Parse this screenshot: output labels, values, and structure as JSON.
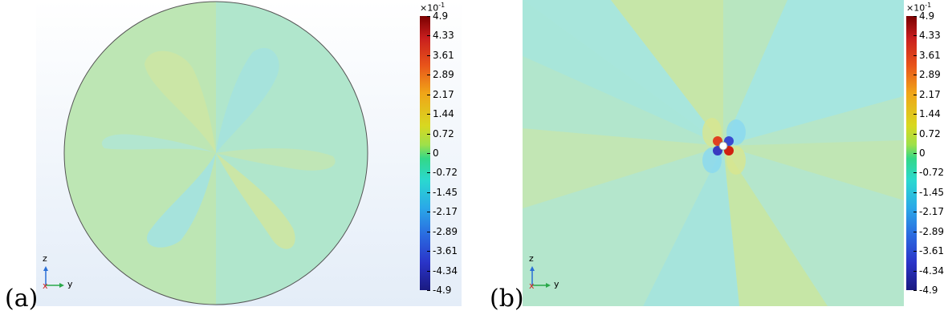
{
  "panels": [
    {
      "label": "(a)",
      "colorbar": {
        "exponent_base": "×10",
        "exponent_power": "-1",
        "ticks": [
          "4.9",
          "4.33",
          "3.61",
          "2.89",
          "2.17",
          "1.44",
          "0.72",
          "0",
          "-0.72",
          "-1.45",
          "-2.17",
          "-2.89",
          "-3.61",
          "-4.34",
          "-4.9"
        ],
        "range": [
          -4.9,
          4.9
        ]
      },
      "axes": {
        "z": "z",
        "y": "y",
        "x": "x"
      }
    },
    {
      "label": "(b)",
      "colorbar": {
        "exponent_base": "×10",
        "exponent_power": "-1",
        "ticks": [
          "4.9",
          "4.33",
          "3.61",
          "2.89",
          "2.17",
          "1.44",
          "0.72",
          "0",
          "-0.72",
          "-1.45",
          "-2.17",
          "-2.89",
          "-3.61",
          "-4.34",
          "-4.9"
        ],
        "range": [
          -4.9,
          4.9
        ]
      },
      "axes": {
        "z": "z",
        "y": "y",
        "x": "x"
      }
    }
  ],
  "colors": {
    "background_gradient_top": "#ffffff",
    "background_gradient_bottom": "#e6eef9",
    "field_positive": "#c9e6a7",
    "field_neutral": "#b4e6c9",
    "field_negative": "#a8e6e0",
    "max_red": "#7a0000",
    "min_blue": "#1a1a80"
  }
}
